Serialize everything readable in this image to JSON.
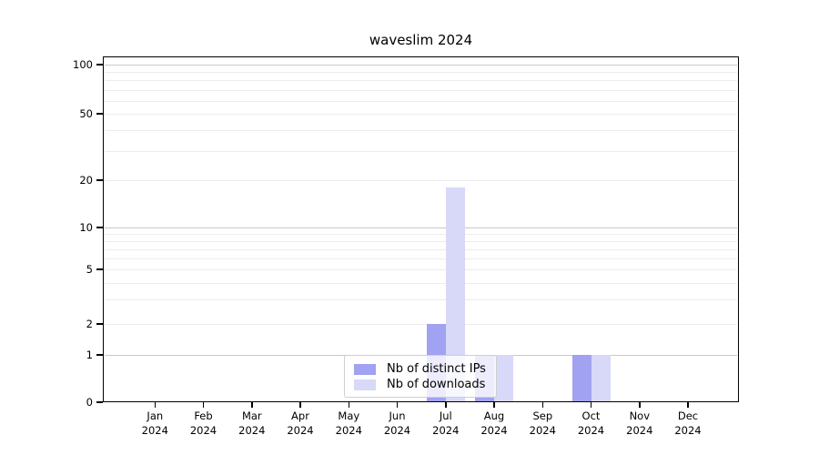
{
  "chart_data": {
    "type": "bar",
    "title": "waveslim 2024",
    "categories": [
      "Jan",
      "Feb",
      "Mar",
      "Apr",
      "May",
      "Jun",
      "Jul",
      "Aug",
      "Sep",
      "Oct",
      "Nov",
      "Dec"
    ],
    "category_year": "2024",
    "series": [
      {
        "name": "Nb of distinct IPs",
        "color": "#a2a2f2",
        "values": [
          0,
          0,
          0,
          0,
          0,
          0,
          2,
          1,
          0,
          1,
          0,
          0
        ]
      },
      {
        "name": "Nb of downloads",
        "color": "#d8d8f8",
        "values": [
          0,
          0,
          0,
          0,
          0,
          0,
          18,
          1,
          0,
          1,
          0,
          0
        ]
      }
    ],
    "y_ticks": [
      0,
      1,
      2,
      5,
      10,
      20,
      50,
      100
    ],
    "y_scale": "log-above-1-linear-below-1",
    "ylim": [
      0,
      115
    ],
    "xlabel": "",
    "ylabel": "",
    "grid": true,
    "legend": {
      "position": "bottom-center"
    },
    "colors": {
      "grid_major": "#c9c9c9",
      "grid_minor": "#ececec",
      "axis": "#000000",
      "background": "#ffffff"
    }
  }
}
